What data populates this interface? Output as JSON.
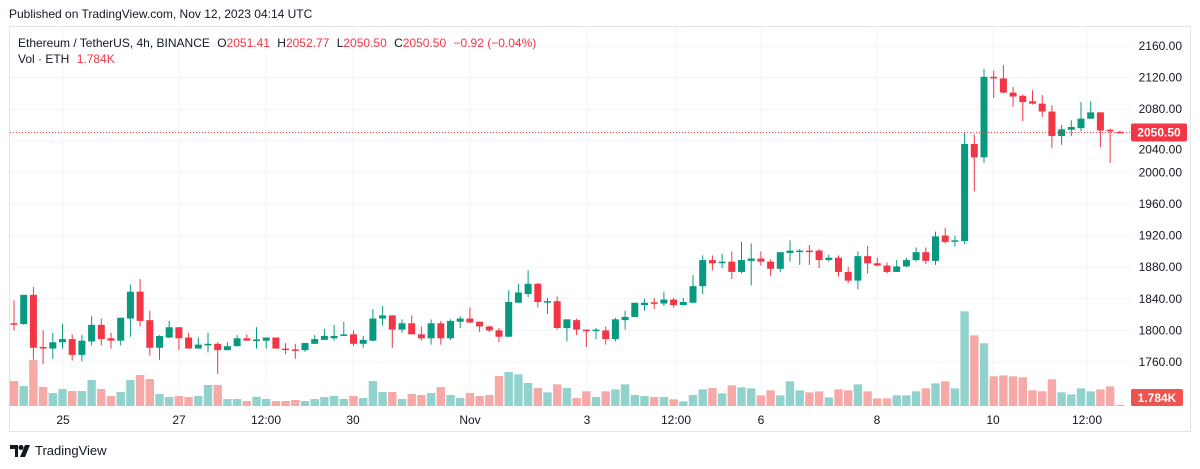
{
  "published": "Published on TradingView.com, Nov 12, 2023 04:14 UTC",
  "legend": {
    "symbol": "Ethereum / TetherUS, 4h, BINANCE",
    "open_label": "O",
    "open": "2051.41",
    "high_label": "H",
    "high": "2052.77",
    "low_label": "L",
    "low": "2050.50",
    "close_label": "C",
    "close": "2050.50",
    "change": "−0.92 (−0.04%)",
    "volume_label": "Vol · ETH",
    "volume": "1.784K"
  },
  "footer": {
    "brand": "TradingView",
    "logo_icon": "tradingview-logo-icon"
  },
  "colors": {
    "up": "#089981",
    "down": "#F23645",
    "vol_up": "#92D2CC",
    "vol_down": "#F7A9A7",
    "grid": "#f0f3fa"
  },
  "chart_data": {
    "type": "candlestick",
    "interval": "4h",
    "price_axis": {
      "ticks": [
        "2160.00",
        "2120.00",
        "2080.00",
        "2040.00",
        "2000.00",
        "1960.00",
        "1920.00",
        "1880.00",
        "1840.00",
        "1800.00",
        "1760.00"
      ],
      "ylim": [
        1745,
        2170
      ]
    },
    "time_axis": {
      "ticks": [
        "25",
        "27",
        "12:00",
        "30",
        "Nov",
        "3",
        "12:00",
        "6",
        "8",
        "10",
        "12:00"
      ]
    },
    "last_price_label": "2050.50",
    "last_volume_label": "1.784K",
    "grid": true,
    "ohlc": [
      [
        1809,
        1838,
        1800,
        1808
      ],
      [
        1808,
        1845,
        1807,
        1845
      ],
      [
        1845,
        1855,
        1763,
        1778
      ],
      [
        1779,
        1800,
        1757,
        1778
      ],
      [
        1777,
        1797,
        1764,
        1785
      ],
      [
        1785,
        1808,
        1777,
        1789
      ],
      [
        1789,
        1795,
        1762,
        1769
      ],
      [
        1769,
        1794,
        1761,
        1787
      ],
      [
        1786,
        1818,
        1781,
        1807
      ],
      [
        1807,
        1815,
        1781,
        1789
      ],
      [
        1790,
        1797,
        1777,
        1787
      ],
      [
        1787,
        1816,
        1781,
        1816
      ],
      [
        1815,
        1858,
        1792,
        1849
      ],
      [
        1849,
        1865,
        1805,
        1812
      ],
      [
        1813,
        1825,
        1768,
        1778
      ],
      [
        1778,
        1794,
        1763,
        1793
      ],
      [
        1791,
        1812,
        1790,
        1804
      ],
      [
        1804,
        1804,
        1775,
        1790
      ],
      [
        1791,
        1797,
        1777,
        1777
      ],
      [
        1777,
        1791,
        1777,
        1782
      ],
      [
        1781,
        1797,
        1772,
        1783
      ],
      [
        1783,
        1785,
        1745,
        1775
      ],
      [
        1775,
        1785,
        1775,
        1780
      ],
      [
        1780,
        1794,
        1780,
        1790
      ],
      [
        1790,
        1795,
        1787,
        1787
      ],
      [
        1787.5,
        1804,
        1777,
        1788.5
      ],
      [
        1787,
        1791,
        1777,
        1791
      ],
      [
        1791,
        1791,
        1777,
        1777
      ],
      [
        1777,
        1784,
        1770,
        1776
      ],
      [
        1776,
        1783,
        1764,
        1775
      ],
      [
        1775,
        1784,
        1773,
        1784
      ],
      [
        1783,
        1794,
        1783,
        1789
      ],
      [
        1788,
        1802,
        1788,
        1793
      ],
      [
        1790,
        1807,
        1787,
        1793
      ],
      [
        1793,
        1811,
        1793,
        1795
      ],
      [
        1795,
        1800,
        1780,
        1783
      ],
      [
        1783,
        1793,
        1778,
        1788
      ],
      [
        1787,
        1827,
        1786,
        1815
      ],
      [
        1815,
        1831,
        1806,
        1819
      ],
      [
        1819,
        1819,
        1778,
        1801
      ],
      [
        1801,
        1814,
        1797,
        1809
      ],
      [
        1809,
        1819,
        1795,
        1795
      ],
      [
        1795,
        1805,
        1787,
        1790
      ],
      [
        1790,
        1814,
        1782,
        1809
      ],
      [
        1809,
        1812,
        1782,
        1790
      ],
      [
        1790,
        1814,
        1788,
        1812
      ],
      [
        1811,
        1818,
        1803,
        1815
      ],
      [
        1815,
        1829,
        1809,
        1810
      ],
      [
        1811,
        1811,
        1798,
        1805
      ],
      [
        1805,
        1806,
        1798,
        1800
      ],
      [
        1800,
        1803,
        1785,
        1792
      ],
      [
        1792,
        1851,
        1792,
        1836
      ],
      [
        1835,
        1859,
        1835,
        1848
      ],
      [
        1846,
        1876,
        1842,
        1859
      ],
      [
        1859,
        1860,
        1829,
        1836
      ],
      [
        1836,
        1841,
        1821,
        1837
      ],
      [
        1837,
        1843,
        1801,
        1803
      ],
      [
        1803,
        1814,
        1786,
        1814
      ],
      [
        1813,
        1815,
        1794,
        1801
      ],
      [
        1801,
        1801,
        1779,
        1799
      ],
      [
        1800,
        1803,
        1789,
        1801
      ],
      [
        1800,
        1805,
        1782,
        1789
      ],
      [
        1789,
        1816,
        1786,
        1814
      ],
      [
        1813,
        1825,
        1801,
        1817
      ],
      [
        1817,
        1835,
        1817,
        1835
      ],
      [
        1832,
        1840,
        1825,
        1835
      ],
      [
        1835.5,
        1841,
        1827,
        1835
      ],
      [
        1834,
        1849,
        1831,
        1839
      ],
      [
        1839,
        1841,
        1829,
        1832
      ],
      [
        1832,
        1841,
        1832,
        1836
      ],
      [
        1835,
        1870,
        1835,
        1856
      ],
      [
        1856,
        1895,
        1846,
        1889
      ],
      [
        1889,
        1895,
        1876,
        1885
      ],
      [
        1885,
        1897,
        1879,
        1887
      ],
      [
        1887,
        1900,
        1865,
        1874
      ],
      [
        1874,
        1912,
        1872,
        1889
      ],
      [
        1888,
        1910,
        1857,
        1891
      ],
      [
        1891,
        1900,
        1882,
        1887
      ],
      [
        1887,
        1890,
        1869,
        1878
      ],
      [
        1878,
        1899,
        1874,
        1899
      ],
      [
        1898,
        1914,
        1887,
        1901
      ],
      [
        1900.5,
        1903,
        1883,
        1901
      ],
      [
        1901,
        1908,
        1883,
        1900.5
      ],
      [
        1901,
        1903,
        1879,
        1889
      ],
      [
        1889,
        1896,
        1887,
        1892
      ],
      [
        1892,
        1895,
        1868,
        1874
      ],
      [
        1874,
        1880,
        1860,
        1863
      ],
      [
        1863,
        1900,
        1852,
        1894
      ],
      [
        1894,
        1907,
        1872,
        1885
      ],
      [
        1885,
        1892,
        1881,
        1882
      ],
      [
        1882,
        1886,
        1872,
        1874
      ],
      [
        1874,
        1889,
        1874,
        1881
      ],
      [
        1881,
        1892,
        1880,
        1889
      ],
      [
        1889,
        1905,
        1887,
        1899
      ],
      [
        1899,
        1905,
        1884,
        1888
      ],
      [
        1888,
        1925,
        1883,
        1919
      ],
      [
        1920,
        1930,
        1910,
        1912
      ],
      [
        1913,
        1920,
        1906,
        1914
      ],
      [
        1913,
        2050,
        1909,
        2036
      ],
      [
        2036,
        2048,
        1976,
        2019
      ],
      [
        2019,
        2131,
        2012,
        2121
      ],
      [
        2121,
        2129,
        2094,
        2119
      ],
      [
        2119,
        2136,
        2100,
        2101
      ],
      [
        2101,
        2108,
        2083,
        2096
      ],
      [
        2097,
        2098.5,
        2065,
        2089
      ],
      [
        2090,
        2104,
        2086,
        2087
      ],
      [
        2087,
        2098,
        2070,
        2077
      ],
      [
        2077,
        2085,
        2031,
        2046
      ],
      [
        2046,
        2060,
        2035,
        2054.5
      ],
      [
        2054,
        2066,
        2046,
        2057.5
      ],
      [
        2056,
        2089,
        2052,
        2068
      ],
      [
        2068,
        2090,
        2068,
        2076
      ],
      [
        2076,
        2076,
        2032,
        2053
      ],
      [
        2054,
        2055.5,
        2012,
        2052
      ],
      [
        2051.41,
        2052.77,
        2050.5,
        2050.5
      ]
    ],
    "volume_k": [
      37.5,
      30,
      69,
      28.5,
      19.5,
      25.5,
      22.5,
      22.5,
      39,
      25.5,
      15,
      21,
      39,
      46.5,
      40.5,
      18,
      13.5,
      15,
      13.5,
      15,
      31.5,
      31.5,
      10.5,
      10.5,
      7.5,
      14,
      10.5,
      7.5,
      7.5,
      9,
      7.5,
      10.5,
      13.5,
      15,
      10.5,
      15,
      12,
      37.5,
      21,
      21,
      10.5,
      18,
      16.5,
      19.5,
      28.5,
      16.5,
      12,
      19.5,
      15,
      16.5,
      45,
      51,
      47.5,
      34.5,
      27,
      20.5,
      32.5,
      27,
      12,
      22,
      13.5,
      22,
      25,
      32.5,
      16.5,
      15,
      13.5,
      13.5,
      10,
      7,
      16.5,
      25,
      27,
      19,
      31,
      28,
      26.5,
      16,
      23.5,
      16,
      37,
      23.5,
      20.5,
      22,
      13,
      25,
      23.5,
      32.5,
      22,
      11.5,
      11.5,
      16,
      16,
      22,
      26.5,
      34,
      37,
      26.5,
      142,
      106,
      94,
      44.5,
      46,
      44.5,
      43,
      23.5,
      22,
      40,
      20.5,
      17.5,
      26.5,
      22,
      25,
      29.5,
      1.784
    ]
  }
}
